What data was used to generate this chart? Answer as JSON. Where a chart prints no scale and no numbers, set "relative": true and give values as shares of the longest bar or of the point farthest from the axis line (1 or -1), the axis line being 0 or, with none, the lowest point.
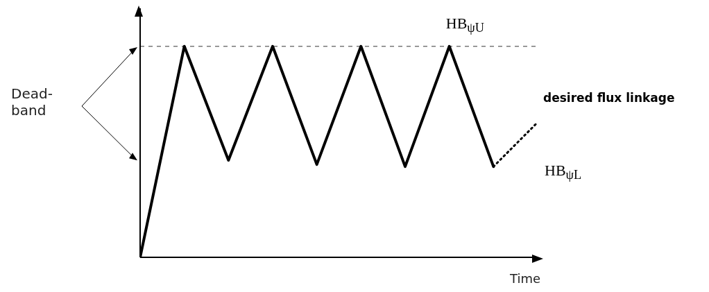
{
  "chart_data": {
    "type": "line",
    "relative": true,
    "xlabel": "Time",
    "categories": [
      null,
      null,
      null,
      null,
      null,
      null,
      null,
      null,
      null,
      null
    ],
    "series": [
      {
        "color": "#000000",
        "values": [
          0,
          1,
          0.46,
          1,
          0.44,
          1,
          0.43,
          1,
          0.43,
          null
        ],
        "line_style": "solid"
      },
      {
        "name": "desired flux linkage",
        "color": "#000000",
        "values": [
          null,
          null,
          null,
          null,
          null,
          null,
          null,
          null,
          0.43,
          0.64
        ],
        "line_style": "dotted"
      }
    ],
    "ref_lines": [
      {
        "axis": "y",
        "value": 1,
        "label": "HB$_{ψU}$",
        "line_style": "dashed",
        "color": "#777777"
      }
    ],
    "annotations": [
      "Dead-band",
      "HB$_{ψL}$"
    ]
  }
}
